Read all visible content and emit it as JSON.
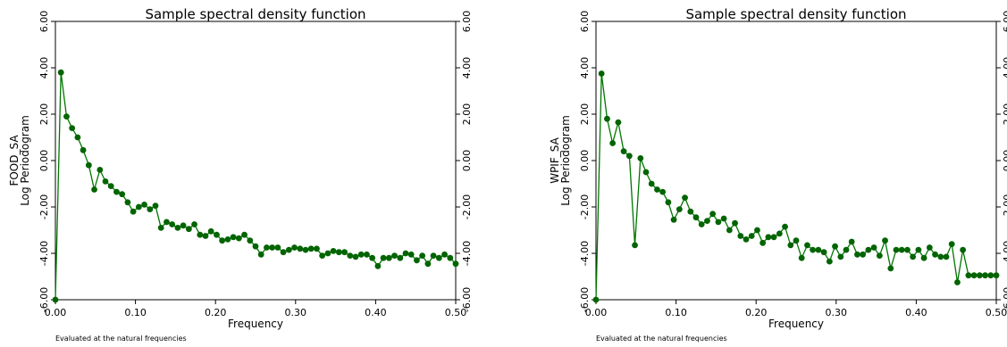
{
  "chart_data": [
    {
      "type": "line",
      "title": "Sample spectral density function",
      "xlabel": "Frequency",
      "ylabel_lines": [
        "FOOD_SA",
        "Log Periodogram"
      ],
      "note": "Evaluated at the natural frequencies",
      "xlim": [
        0,
        0.5
      ],
      "ylim": [
        -6,
        6
      ],
      "xticks": [
        "0.00",
        "0.10",
        "0.20",
        "0.30",
        "0.40",
        "0.50"
      ],
      "yticks": [
        "-6.00",
        "-4.00",
        "-2.00",
        "0.00",
        "2.00",
        "4.00",
        "6.00"
      ],
      "marker_color": "#006400",
      "line_color": "#007700",
      "series": [
        {
          "x": [
            0.0,
            0.0069,
            0.0139,
            0.0208,
            0.0278,
            0.0347,
            0.0417,
            0.0486,
            0.0556,
            0.0625,
            0.0694,
            0.0764,
            0.0833,
            0.0903,
            0.0972,
            0.1042,
            0.1111,
            0.1181,
            0.125,
            0.1319,
            0.1389,
            0.1458,
            0.1528,
            0.1597,
            0.1667,
            0.1736,
            0.1806,
            0.1875,
            0.1944,
            0.2014,
            0.2083,
            0.2153,
            0.2222,
            0.2292,
            0.2361,
            0.2431,
            0.25,
            0.2569,
            0.2639,
            0.2708,
            0.2778,
            0.2847,
            0.2917,
            0.2986,
            0.3056,
            0.3125,
            0.3194,
            0.3264,
            0.3333,
            0.3403,
            0.3472,
            0.3542,
            0.3611,
            0.3681,
            0.375,
            0.3819,
            0.3889,
            0.3958,
            0.4028,
            0.4097,
            0.4167,
            0.4236,
            0.4306,
            0.4375,
            0.4444,
            0.4514,
            0.4583,
            0.4653,
            0.4722,
            0.4792,
            0.4861,
            0.4931,
            0.5
          ],
          "y": [
            -6.0,
            3.8,
            1.9,
            1.4,
            1.0,
            0.45,
            -0.2,
            -1.25,
            -0.4,
            -0.9,
            -1.1,
            -1.35,
            -1.45,
            -1.8,
            -2.2,
            -2.0,
            -1.9,
            -2.1,
            -1.95,
            -2.9,
            -2.65,
            -2.75,
            -2.9,
            -2.8,
            -2.95,
            -2.75,
            -3.2,
            -3.25,
            -3.05,
            -3.2,
            -3.45,
            -3.4,
            -3.3,
            -3.35,
            -3.2,
            -3.45,
            -3.7,
            -4.05,
            -3.75,
            -3.75,
            -3.75,
            -3.95,
            -3.85,
            -3.75,
            -3.8,
            -3.85,
            -3.8,
            -3.8,
            -4.1,
            -4.0,
            -3.9,
            -3.95,
            -3.95,
            -4.1,
            -4.15,
            -4.05,
            -4.05,
            -4.2,
            -4.55,
            -4.2,
            -4.2,
            -4.1,
            -4.2,
            -4.0,
            -4.05,
            -4.3,
            -4.1,
            -4.45,
            -4.1,
            -4.2,
            -4.05,
            -4.2,
            -4.45
          ]
        }
      ]
    },
    {
      "type": "line",
      "title": "Sample spectral density function",
      "xlabel": "Frequency",
      "ylabel_lines": [
        "WPIF_SA",
        "Log Periodogram"
      ],
      "note": "Evaluated at the natural frequencies",
      "xlim": [
        0,
        0.5
      ],
      "ylim": [
        -6,
        6
      ],
      "xticks": [
        "0.00",
        "0.10",
        "0.20",
        "0.30",
        "0.40",
        "0.50"
      ],
      "yticks": [
        "-6.00",
        "-4.00",
        "-2.00",
        "0.00",
        "2.00",
        "4.00",
        "6.00"
      ],
      "marker_color": "#006400",
      "line_color": "#007700",
      "series": [
        {
          "x": [
            0.0,
            0.0069,
            0.0139,
            0.0208,
            0.0278,
            0.0347,
            0.0417,
            0.0486,
            0.0556,
            0.0625,
            0.0694,
            0.0764,
            0.0833,
            0.0903,
            0.0972,
            0.1042,
            0.1111,
            0.1181,
            0.125,
            0.1319,
            0.1389,
            0.1458,
            0.1528,
            0.1597,
            0.1667,
            0.1736,
            0.1806,
            0.1875,
            0.1944,
            0.2014,
            0.2083,
            0.2153,
            0.2222,
            0.2292,
            0.2361,
            0.2431,
            0.25,
            0.2569,
            0.2639,
            0.2708,
            0.2778,
            0.2847,
            0.2917,
            0.2986,
            0.3056,
            0.3125,
            0.3194,
            0.3264,
            0.3333,
            0.3403,
            0.3472,
            0.3542,
            0.3611,
            0.3681,
            0.375,
            0.3819,
            0.3889,
            0.3958,
            0.4028,
            0.4097,
            0.4167,
            0.4236,
            0.4306,
            0.4375,
            0.4444,
            0.4514,
            0.4583,
            0.4653,
            0.4722,
            0.4792,
            0.4861,
            0.4931,
            0.5
          ],
          "y": [
            -6.0,
            3.75,
            1.8,
            0.75,
            1.65,
            0.4,
            0.2,
            -3.65,
            0.1,
            -0.5,
            -1.0,
            -1.25,
            -1.35,
            -1.8,
            -2.55,
            -2.1,
            -1.6,
            -2.2,
            -2.45,
            -2.75,
            -2.6,
            -2.3,
            -2.65,
            -2.5,
            -3.0,
            -2.7,
            -3.25,
            -3.4,
            -3.25,
            -3.0,
            -3.55,
            -3.3,
            -3.3,
            -3.15,
            -2.85,
            -3.65,
            -3.45,
            -4.2,
            -3.65,
            -3.85,
            -3.85,
            -3.95,
            -4.35,
            -3.7,
            -4.15,
            -3.85,
            -3.5,
            -4.05,
            -4.05,
            -3.85,
            -3.75,
            -4.1,
            -3.45,
            -4.65,
            -3.85,
            -3.85,
            -3.85,
            -4.15,
            -3.85,
            -4.2,
            -3.75,
            -4.05,
            -4.15,
            -4.15,
            -3.6,
            -5.25,
            -3.85,
            -4.95,
            -4.95,
            -4.95,
            -4.95,
            -4.95,
            -4.95
          ]
        }
      ]
    }
  ]
}
